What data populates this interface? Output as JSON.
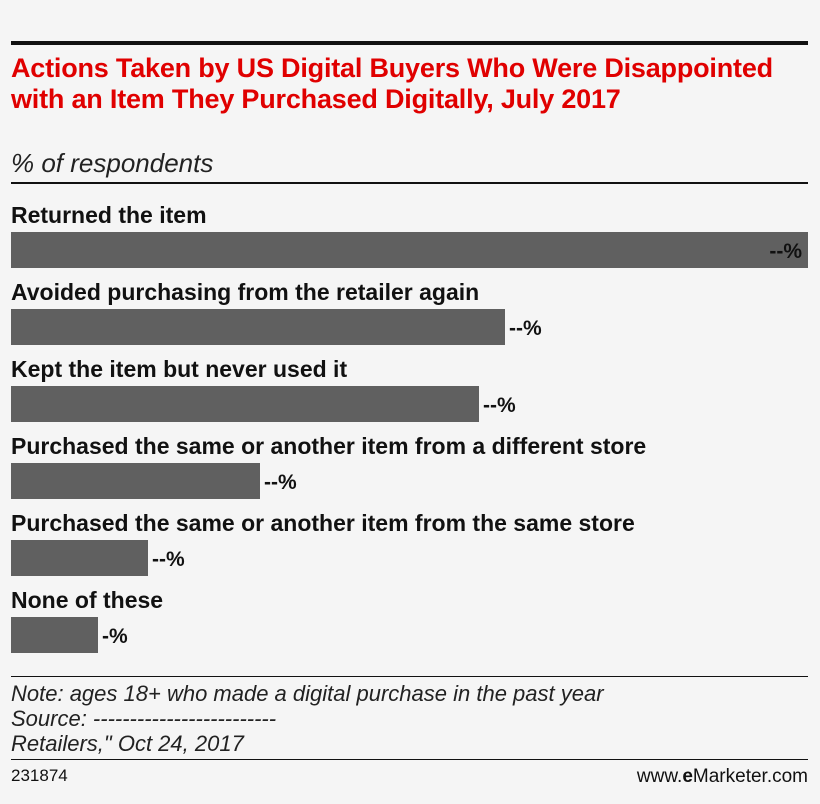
{
  "title": "Actions Taken by US Digital Buyers Who Were Disappointed with an Item They Purchased Digitally, July 2017",
  "subtitle": "% of respondents",
  "note_lines": [
    "Note: ages 18+ who made a digital purchase in the past year",
    "Source: -------------------------",
    "Retailers,\" Oct 24, 2017"
  ],
  "chart_id": "231874",
  "brand": {
    "prefix": "www.",
    "bold": "e",
    "name": "Marketer.com"
  },
  "colors": {
    "title": "#e00000",
    "bar": "#606060",
    "background": "#f5f5f5"
  },
  "chart_data": {
    "type": "bar",
    "orientation": "horizontal",
    "title": "Actions Taken by US Digital Buyers Who Were Disappointed with an Item They Purchased Digitally, July 2017",
    "subtitle": "% of respondents",
    "categories": [
      "Returned the item",
      "Avoided purchasing from the retailer again",
      "Kept the item but never used it",
      "Purchased the same or another item from a different store",
      "Purchased the same or another item from the same store",
      "None of these"
    ],
    "values": [
      100,
      62,
      58.7,
      31.3,
      17.2,
      10.9
    ],
    "value_labels": [
      "--%",
      "--%",
      "--%",
      "--%",
      "--%",
      "-%"
    ],
    "value_scale": "relative to largest bar (actual values masked in source)",
    "xlim": [
      0,
      100
    ],
    "grid": false,
    "legend": "none"
  }
}
